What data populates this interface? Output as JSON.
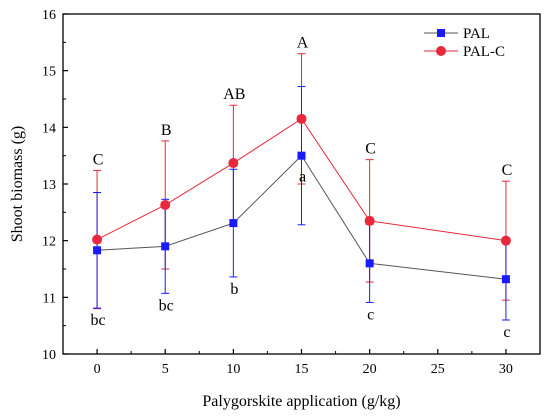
{
  "chart_data": {
    "type": "line",
    "xlabel": "Palygorskite application (g/kg)",
    "ylabel": "Shoot biomass (g)",
    "xlim": [
      -2.5,
      32.5
    ],
    "ylim": [
      10,
      16
    ],
    "x_ticks": [
      0,
      5,
      10,
      15,
      20,
      25,
      30
    ],
    "y_ticks": [
      10,
      11,
      12,
      13,
      14,
      15,
      16
    ],
    "x": [
      0,
      5,
      10,
      15,
      20,
      30
    ],
    "grid": false,
    "legend_position": "top-right",
    "series": [
      {
        "name": "PAL",
        "color": "#1a1aff",
        "line_color": "#555555",
        "marker": "square",
        "values": [
          11.83,
          11.9,
          12.31,
          13.5,
          11.6,
          11.32
        ],
        "error": [
          1.02,
          0.83,
          0.95,
          1.22,
          0.69,
          0.72
        ],
        "labels": [
          "bc",
          "bc",
          "b",
          "a",
          "c",
          "c"
        ]
      },
      {
        "name": "PAL-C",
        "color": "#e8283c",
        "line_color": "#e8283c",
        "marker": "circle",
        "values": [
          12.02,
          12.63,
          13.37,
          14.15,
          12.35,
          12.0
        ],
        "error": [
          1.22,
          1.13,
          1.02,
          1.15,
          1.08,
          1.05
        ],
        "labels": [
          "C",
          "B",
          "AB",
          "A",
          "C",
          "C"
        ]
      }
    ]
  }
}
